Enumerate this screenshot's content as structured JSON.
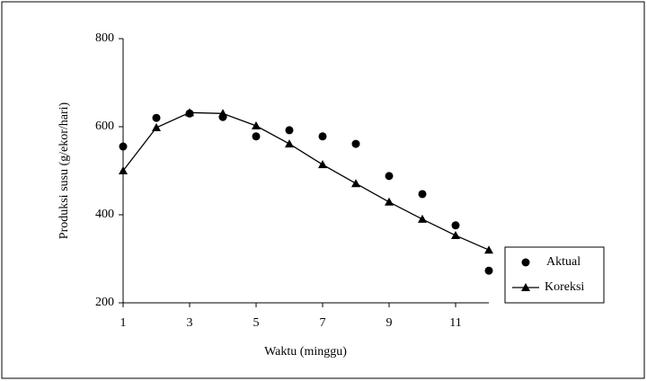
{
  "chart_data": {
    "type": "line",
    "x_label": "Waktu (minggu)",
    "y_label": "Produksi susu (g/ekor/hari)",
    "x": [
      1,
      2,
      3,
      4,
      5,
      6,
      7,
      8,
      9,
      10,
      11,
      12
    ],
    "series": [
      {
        "name": "Aktual",
        "color": "#000000",
        "marker": "circle",
        "line": false,
        "values": [
          555,
          620,
          630,
          622,
          578,
          592,
          578,
          561,
          488,
          447,
          376,
          273
        ]
      },
      {
        "name": "Koreksi",
        "color": "#000000",
        "marker": "triangle",
        "line": true,
        "values": [
          500,
          598,
          632,
          630,
          602,
          561,
          514,
          471,
          429,
          390,
          353,
          320
        ]
      }
    ],
    "xlim": [
      1,
      12
    ],
    "xticks": [
      1,
      3,
      5,
      7,
      9,
      11
    ],
    "ylim": [
      200,
      800
    ],
    "yticks": [
      200,
      400,
      600,
      800
    ],
    "grid": false,
    "legend": "lower right"
  }
}
